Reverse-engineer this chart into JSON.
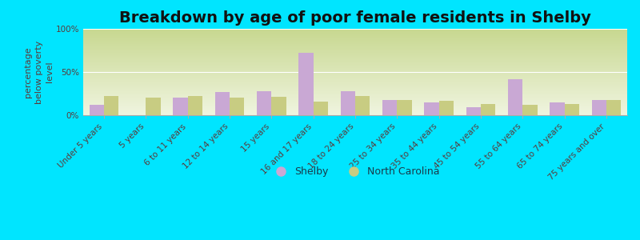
{
  "title": "Breakdown by age of poor female residents in Shelby",
  "ylabel": "percentage\nbelow poverty\nlevel",
  "categories": [
    "Under 5 years",
    "5 years",
    "6 to 11 years",
    "12 to 14 years",
    "15 years",
    "16 and 17 years",
    "18 to 24 years",
    "25 to 34 years",
    "35 to 44 years",
    "45 to 54 years",
    "55 to 64 years",
    "65 to 74 years",
    "75 years and over"
  ],
  "shelby_values": [
    12,
    0,
    20,
    27,
    28,
    72,
    28,
    18,
    15,
    9,
    42,
    15,
    18
  ],
  "nc_values": [
    22,
    20,
    22,
    20,
    21,
    16,
    22,
    18,
    17,
    13,
    12,
    13,
    18
  ],
  "shelby_color": "#c9a8d4",
  "nc_color": "#c8cc82",
  "plot_bg_top": "#c8d890",
  "plot_bg_bottom": "#f0f5e0",
  "outer_bg": "#00e5ff",
  "ylim": [
    0,
    100
  ],
  "yticks": [
    0,
    50,
    100
  ],
  "ytick_labels": [
    "0%",
    "50%",
    "100%"
  ],
  "title_fontsize": 14,
  "axis_label_fontsize": 8,
  "tick_fontsize": 7.5,
  "legend_fontsize": 9,
  "bar_width": 0.35,
  "tick_color": "#5a3a3a",
  "ylabel_color": "#5a3a3a"
}
